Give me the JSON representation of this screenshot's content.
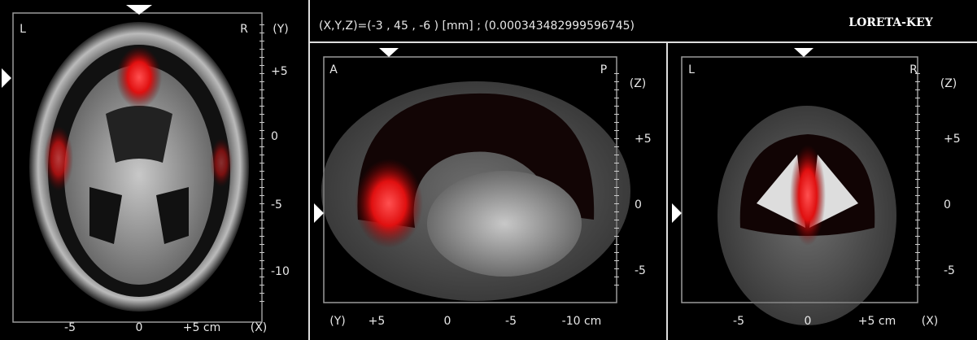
{
  "header": {
    "coordinates": "(X,Y,Z)=(-3 , 45 , -6 ) [mm] ; (0.000343482999596745)",
    "app": "LORETA-KEY"
  },
  "panels": [
    {
      "corner_left": "L",
      "corner_right": "R",
      "right_axis_label": "(Y)",
      "right_ticks": [
        "+5",
        "0",
        "-5",
        "-10"
      ],
      "bottom_ticks": [
        "-5",
        "0",
        "+5 cm"
      ],
      "bottom_axis_label": "(X)"
    },
    {
      "corner_left": "A",
      "corner_right": "P",
      "right_axis_label": "(Z)",
      "right_ticks": [
        "+5",
        "0",
        "-5"
      ],
      "bottom_axis_label": "(Y)",
      "bottom_ticks": [
        "+5",
        "0",
        "-5",
        "-10 cm"
      ]
    },
    {
      "corner_left": "L",
      "corner_right": "R",
      "right_axis_label": "(Z)",
      "right_ticks": [
        "+5",
        "0",
        "-5"
      ],
      "bottom_ticks": [
        "-5",
        "0",
        "+5 cm"
      ],
      "bottom_axis_label": "(X)"
    }
  ]
}
